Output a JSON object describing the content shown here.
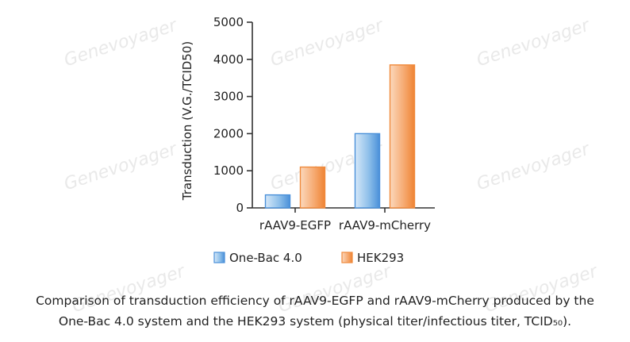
{
  "watermark": "Genevoyager",
  "caption": {
    "line1": "Comparison of transduction efficiency of rAAV9-EGFP and rAAV9-mCherry produced by the",
    "line2": "One-Bac 4.0 system and the HEK293 system (physical titer/infectious titer, TCID₅₀)."
  },
  "colors": {
    "one_bac": "#4a90d9",
    "hek293": "#f08a3c"
  },
  "chart_data": {
    "type": "bar",
    "categories": [
      "rAAV9-EGFP",
      "rAAV9-mCherry"
    ],
    "series": [
      {
        "name": "One-Bac 4.0",
        "values": [
          350,
          2000
        ]
      },
      {
        "name": "HEK293",
        "values": [
          1100,
          3850
        ]
      }
    ],
    "ylabel": "Transduction (V.G./TCID50)",
    "ylim": [
      0,
      5000
    ],
    "yticks": [
      0,
      1000,
      2000,
      3000,
      4000,
      5000
    ],
    "grid": false,
    "legend": "bottom"
  }
}
